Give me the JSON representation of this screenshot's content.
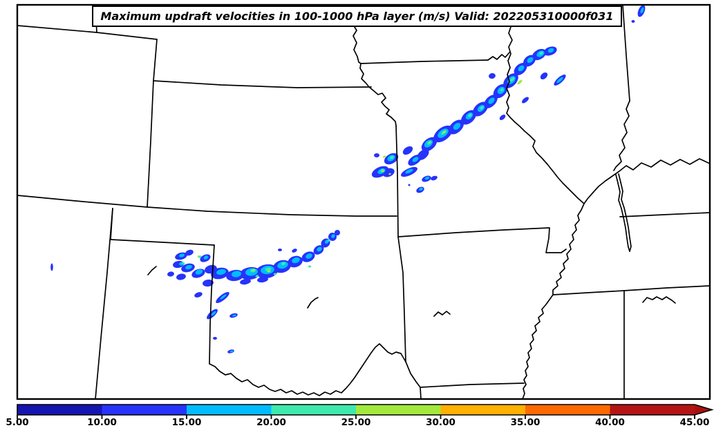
{
  "figure": {
    "title": "Maximum updraft velocities in 100-1000 hPa layer (m/s) Valid: 202205310000f031",
    "background": "#ffffff",
    "frame_color": "#000000",
    "boundary_color": "#000000"
  },
  "colorbar": {
    "tick_labels": [
      "5.00",
      "10.00",
      "15.00",
      "20.00",
      "25.00",
      "30.00",
      "35.00",
      "40.00",
      "45.00"
    ],
    "segment_colors": [
      "#1515B0",
      "#2633FA",
      "#00BCFF",
      "#3FE9AE",
      "#A2E93C",
      "#FFB000",
      "#FF6A00",
      "#B41414"
    ],
    "arrow_color": "#A81010",
    "outline_color": "#000000"
  },
  "chart_data": {
    "type": "heatmap",
    "title": "Maximum updraft velocities in 100-1000 hPa layer (m/s)",
    "valid_label": "Valid: 202205310000f031",
    "units": "m/s",
    "levels": [
      5.0,
      10.0,
      15.0,
      20.0,
      25.0,
      30.0,
      35.0,
      40.0,
      45.0
    ],
    "level_colors": [
      "#1515B0",
      "#2633FA",
      "#00BCFF",
      "#3FE9AE",
      "#A2E93C",
      "#FFB000",
      "#FF6A00",
      "#B41414"
    ],
    "legend_position": "bottom horizontal colorbar with right arrow extension above 45",
    "basemap": "US state boundaries, central United States",
    "features": [
      {
        "name": "squall line from northeast Kansas through northwest Missouri toward Iowa/Illinois",
        "orientation": "SW-NE",
        "values_range_ms": [
          10,
          30
        ]
      },
      {
        "name": "storm cluster over Texas panhandle and far western Oklahoma",
        "orientation": "W-E",
        "values_range_ms": [
          10,
          30
        ]
      },
      {
        "name": "isolated weak cell far west edge",
        "orientation": "point",
        "values_range_ms": [
          10,
          15
        ]
      }
    ]
  }
}
